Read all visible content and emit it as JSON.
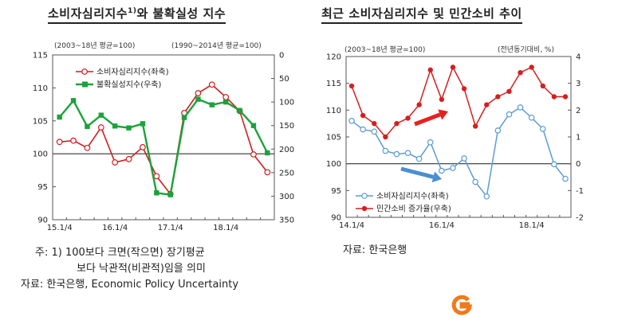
{
  "left": {
    "title_main": "소비자심리지수",
    "title_sup": "1)",
    "title_rest": "와 불확실성 지수",
    "unit_left": "(2003~18년 평균=100)",
    "unit_right": "(1990~2014년 평균=100)",
    "notes": [
      "주: 1) 100보다 크면(작으면) 장기평균",
      "보다 낙관적(비관적)임을 의미",
      "자료: 한국은행, Economic Policy Uncertainty"
    ]
  },
  "right": {
    "title": "최근 소비자심리지수 및 민간소비 추이",
    "unit_left": "(2003~18년 평균=100)",
    "unit_right": "(전년동기대비, %)",
    "notes": [
      "자료: 한국은행"
    ]
  },
  "colors": {
    "csi_left": "#cc1f1f",
    "unc": "#1aa33a",
    "csi_right": "#5b9bd5",
    "cons": "#d42020",
    "arrow_red": "#e8201e",
    "arrow_blue": "#4a8fd0",
    "logo": "#f07a1a"
  },
  "chart_data": [
    {
      "type": "line",
      "x": [
        "15.1/4",
        "15.2/4",
        "15.3/4",
        "15.4/4",
        "16.1/4",
        "16.2/4",
        "16.3/4",
        "16.4/4",
        "17.1/4",
        "17.2/4",
        "17.3/4",
        "17.4/4",
        "18.1/4",
        "18.2/4",
        "18.3/4",
        "18.4/4"
      ],
      "xticks": [
        "15.1/4",
        "16.1/4",
        "17.1/4",
        "18.1/4"
      ],
      "series": [
        {
          "name": "소비자심리지수(좌축)",
          "axis": "left",
          "values": [
            101.8,
            102.0,
            100.9,
            104.0,
            98.7,
            99.2,
            101.0,
            96.6,
            93.9,
            106.2,
            109.2,
            110.5,
            108.6,
            106.5,
            99.9,
            97.2
          ]
        },
        {
          "name": "불확실성지수(우축)",
          "axis": "right",
          "values": [
            132,
            97,
            152,
            128,
            151,
            155,
            146,
            293,
            297,
            133,
            94,
            106,
            100,
            118,
            150,
            208
          ]
        }
      ],
      "ylim_left": [
        90,
        115
      ],
      "yticks_left": [
        90,
        95,
        100,
        105,
        110,
        115
      ],
      "ylim_right": [
        350,
        0
      ],
      "yticks_right": [
        0,
        50,
        100,
        150,
        200,
        250,
        300,
        350
      ],
      "reference_line": 100,
      "legend": "top-left"
    },
    {
      "type": "line",
      "x": [
        "14.1/4",
        "14.2/4",
        "14.3/4",
        "14.4/4",
        "15.1/4",
        "15.2/4",
        "15.3/4",
        "15.4/4",
        "16.1/4",
        "16.2/4",
        "16.3/4",
        "16.4/4",
        "17.1/4",
        "17.2/4",
        "17.3/4",
        "17.4/4",
        "18.1/4",
        "18.2/4",
        "18.3/4",
        "18.4/4"
      ],
      "xticks": [
        "14.1/4",
        "16.1/4",
        "18.1/4"
      ],
      "series": [
        {
          "name": "소비자심리지수(좌축)",
          "axis": "left",
          "values": [
            108.0,
            106.4,
            106.0,
            102.4,
            101.8,
            102.0,
            100.9,
            104.0,
            98.7,
            99.2,
            101.0,
            96.6,
            93.9,
            106.2,
            109.2,
            110.5,
            108.6,
            106.5,
            99.9,
            97.2
          ]
        },
        {
          "name": "민간소비 증가율(우축)",
          "axis": "right",
          "values": [
            2.9,
            1.8,
            1.5,
            1.0,
            1.5,
            1.7,
            2.2,
            3.5,
            2.4,
            3.6,
            2.8,
            1.4,
            2.2,
            2.5,
            2.7,
            3.4,
            3.6,
            2.9,
            2.5,
            2.5
          ]
        }
      ],
      "ylim_left": [
        90,
        120
      ],
      "yticks_left": [
        90,
        95,
        100,
        105,
        110,
        115,
        120
      ],
      "ylim_right": [
        -2,
        4
      ],
      "yticks_right": [
        -2,
        -1,
        0,
        1,
        2,
        3,
        4
      ],
      "reference_line": 100,
      "legend": "bottom-center"
    }
  ]
}
